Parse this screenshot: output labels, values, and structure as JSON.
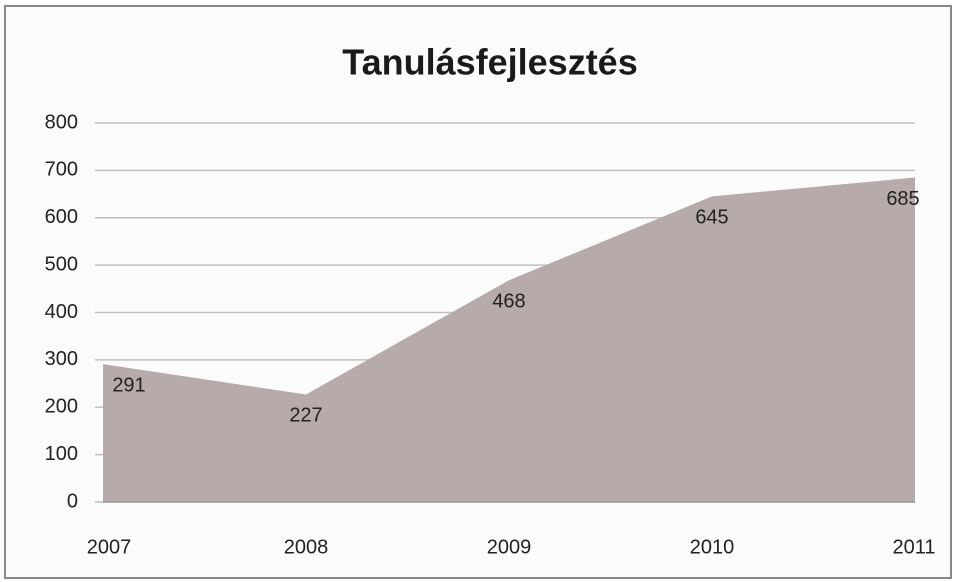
{
  "chart_data": {
    "type": "area",
    "title": "Tanulásfejlesztés",
    "categories": [
      "2007",
      "2008",
      "2009",
      "2010",
      "2011"
    ],
    "values": [
      291,
      227,
      468,
      645,
      685
    ],
    "color": "#b6aaaa",
    "ylim": [
      0,
      800
    ],
    "yticks": [
      0,
      100,
      200,
      300,
      400,
      500,
      600,
      700,
      800
    ],
    "grid": true
  }
}
